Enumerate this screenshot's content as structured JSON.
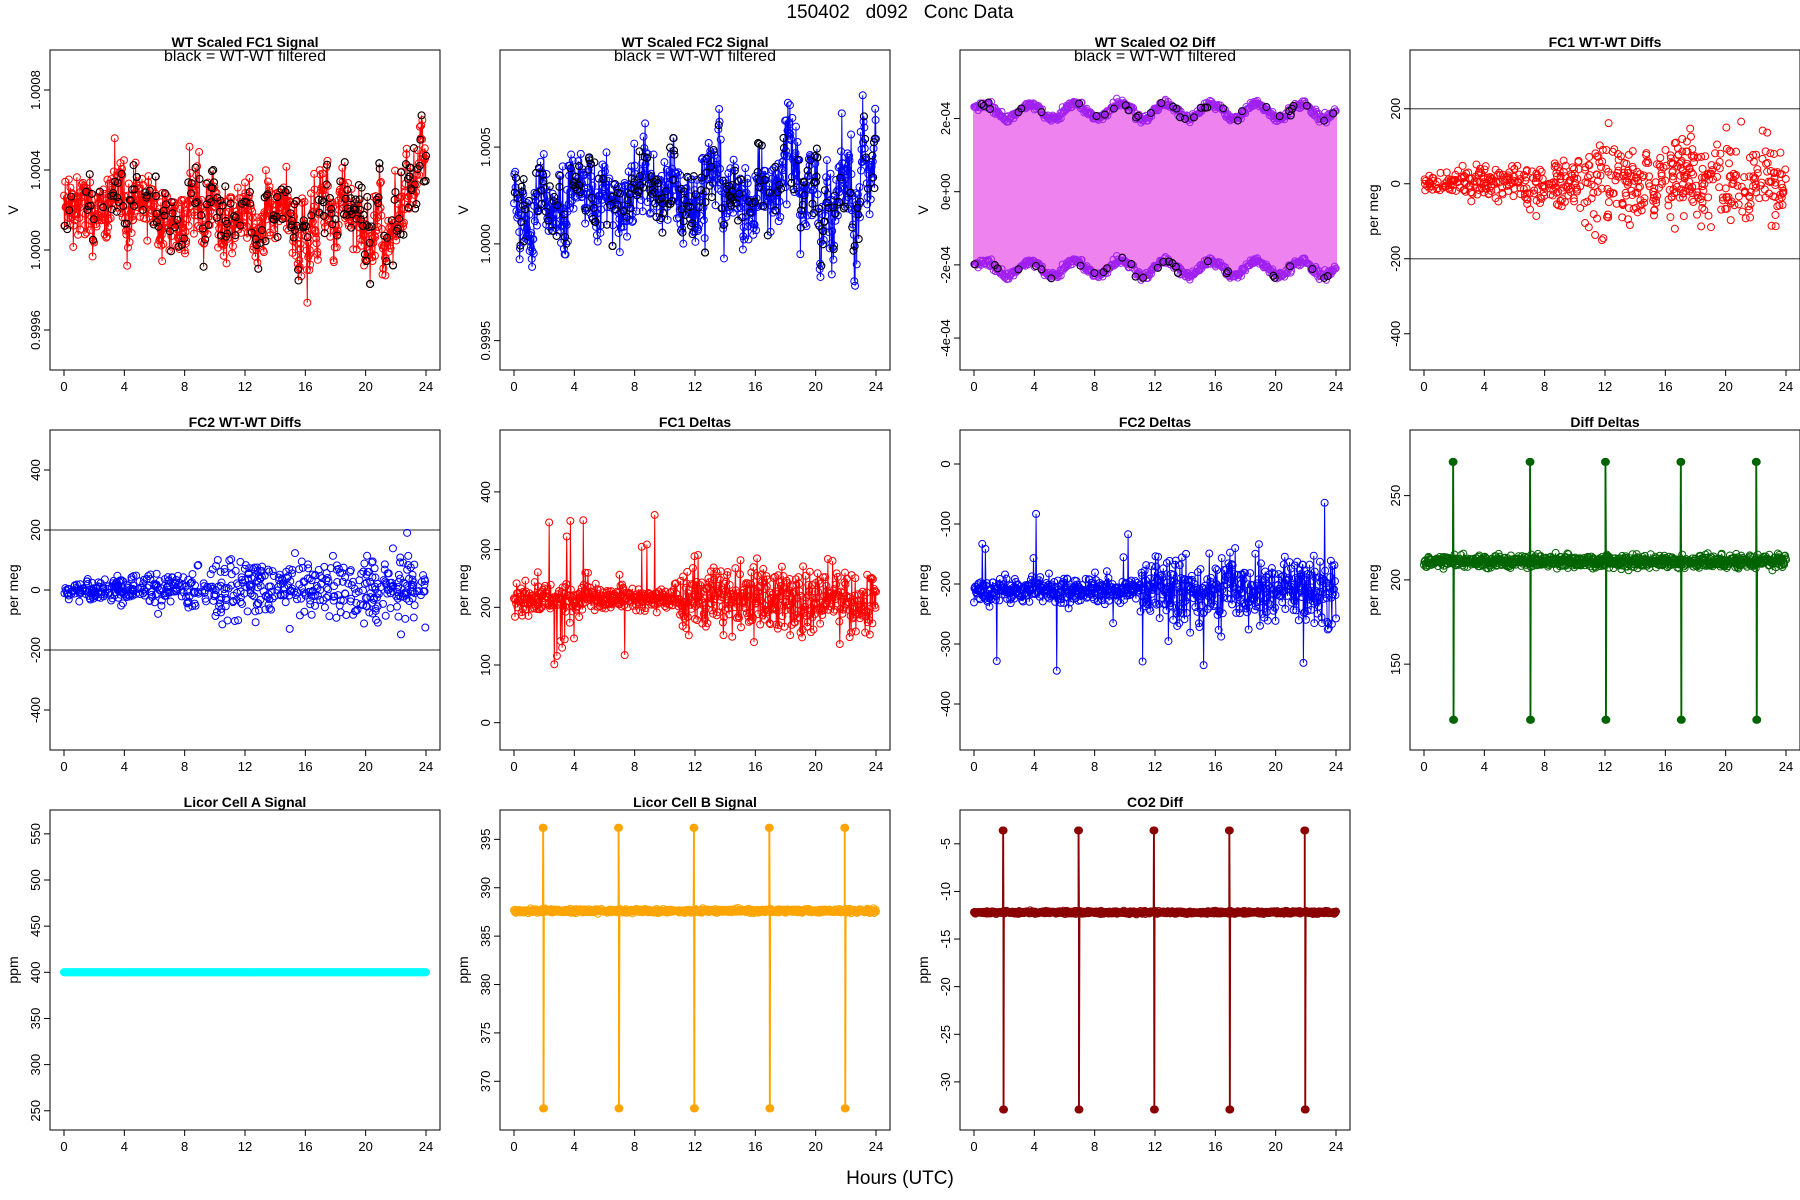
{
  "figure": {
    "title": "150402   d092   Conc Data",
    "xlabel": "Hours (UTC)"
  },
  "chart_data": [
    {
      "type": "line",
      "title": "WT Scaled FC1 Signal",
      "annotation": "black = WT-WT filtered",
      "xlabel": "",
      "ylabel": "V",
      "xlim": [
        0,
        24
      ],
      "ylim": [
        0.99945,
        1.00095
      ],
      "xticks": [
        0,
        4,
        8,
        12,
        16,
        20,
        24
      ],
      "yticks": [
        0.9996,
        1.0,
        1.0004,
        1.0008
      ],
      "ytick_labels": [
        "0.9996",
        "1.0000",
        "1.0004",
        "1.0008"
      ],
      "gen": {
        "kind": "noise",
        "center": 1.0002,
        "amp": 0.00025,
        "seed": 11
      },
      "series": [
        {
          "name": "signal",
          "color": "#ff0000",
          "style": "line+points"
        },
        {
          "name": "WT-WT filtered",
          "color": "#000000",
          "style": "points"
        }
      ]
    },
    {
      "type": "line",
      "title": "WT Scaled FC2 Signal",
      "annotation": "black = WT-WT filtered",
      "xlabel": "",
      "ylabel": "V",
      "xlim": [
        0,
        24
      ],
      "ylim": [
        0.9994,
        1.00095
      ],
      "xticks": [
        0,
        4,
        8,
        12,
        16,
        20,
        24
      ],
      "yticks": [
        0.9995,
        1.0,
        1.0005
      ],
      "ytick_labels": [
        "0.9995",
        "1.0000",
        "1.0005"
      ],
      "gen": {
        "kind": "noise",
        "center": 1.0002,
        "amp": 0.0003,
        "seed": 23
      },
      "series": [
        {
          "name": "signal",
          "color": "#0000ff",
          "style": "line+points"
        },
        {
          "name": "WT-WT filtered",
          "color": "#000000",
          "style": "points"
        }
      ]
    },
    {
      "type": "line",
      "title": "WT Scaled O2 Diff",
      "annotation": "black = WT-WT filtered",
      "xlabel": "",
      "ylabel": "V",
      "xlim": [
        0,
        24
      ],
      "ylim": [
        -0.00046,
        0.00036
      ],
      "xticks": [
        0,
        4,
        8,
        12,
        16,
        20,
        24
      ],
      "yticks": [
        -0.0004,
        -0.0002,
        0,
        0.0002
      ],
      "ytick_labels": [
        "-4e-04",
        "-2e-04",
        "0e+00",
        "2e-04"
      ],
      "gen": {
        "kind": "band",
        "upper": 0.00022,
        "lower": -0.00021,
        "seed": 37
      },
      "series": [
        {
          "name": "signal",
          "color": "#ee82ee",
          "style": "band"
        },
        {
          "name": "points",
          "color": "#a020f0",
          "style": "points"
        },
        {
          "name": "WT-WT filtered",
          "color": "#000000",
          "style": "points"
        }
      ]
    },
    {
      "type": "scatter",
      "title": "FC1 WT-WT Diffs",
      "xlabel": "",
      "ylabel": "per meg",
      "xlim": [
        0,
        24
      ],
      "ylim": [
        -470,
        330
      ],
      "xticks": [
        0,
        4,
        8,
        12,
        16,
        20,
        24
      ],
      "yticks": [
        -400,
        -200,
        0,
        200
      ],
      "ytick_labels": [
        "-400",
        "-200",
        "0",
        "200"
      ],
      "hlines": [
        200,
        -200
      ],
      "gen": {
        "kind": "scatter",
        "seed": 41
      },
      "series": [
        {
          "name": "FC1 WT-WT Diffs",
          "color": "#ff0000",
          "style": "points"
        }
      ]
    },
    {
      "type": "scatter",
      "title": "FC2 WT-WT Diffs",
      "xlabel": "",
      "ylabel": "per meg",
      "xlim": [
        0,
        24
      ],
      "ylim": [
        -500,
        500
      ],
      "xticks": [
        0,
        4,
        8,
        12,
        16,
        20,
        24
      ],
      "yticks": [
        -400,
        -200,
        0,
        200,
        400
      ],
      "ytick_labels": [
        "-400",
        "-200",
        "0",
        "200",
        "400"
      ],
      "hlines": [
        200,
        -200
      ],
      "gen": {
        "kind": "scatter",
        "seed": 53
      },
      "series": [
        {
          "name": "FC2 WT-WT Diffs",
          "color": "#0000ff",
          "style": "points"
        }
      ]
    },
    {
      "type": "line",
      "title": "FC1 Deltas",
      "xlabel": "",
      "ylabel": "per meg",
      "xlim": [
        0,
        24
      ],
      "ylim": [
        -30,
        490
      ],
      "xticks": [
        0,
        4,
        8,
        12,
        16,
        20,
        24
      ],
      "yticks": [
        0,
        100,
        200,
        300,
        400
      ],
      "ytick_labels": [
        "0",
        "100",
        "200",
        "300",
        "400"
      ],
      "gen": {
        "kind": "delta",
        "center": 215,
        "seed": 67
      },
      "series": [
        {
          "name": "FC1 Deltas",
          "color": "#ff0000",
          "style": "line+points"
        }
      ]
    },
    {
      "type": "line",
      "title": "FC2 Deltas",
      "xlabel": "",
      "ylabel": "per meg",
      "xlim": [
        0,
        24
      ],
      "ylim": [
        -460,
        40
      ],
      "xticks": [
        0,
        4,
        8,
        12,
        16,
        20,
        24
      ],
      "yticks": [
        -400,
        -300,
        -200,
        -100,
        0
      ],
      "ytick_labels": [
        "-400",
        "-300",
        "-200",
        "-100",
        "0"
      ],
      "gen": {
        "kind": "delta",
        "center": -210,
        "seed": 71
      },
      "series": [
        {
          "name": "FC2 Deltas",
          "color": "#0000ff",
          "style": "line+points"
        }
      ]
    },
    {
      "type": "line",
      "title": "Diff Deltas",
      "xlabel": "",
      "ylabel": "per meg",
      "xlim": [
        0,
        24
      ],
      "ylim": [
        105,
        283
      ],
      "xticks": [
        0,
        4,
        8,
        12,
        16,
        20,
        24
      ],
      "yticks": [
        150,
        200,
        250
      ],
      "ytick_labels": [
        "150",
        "200",
        "250"
      ],
      "gen": {
        "kind": "spikes",
        "base": 211,
        "noise": 4,
        "hi": 270,
        "lo": 117,
        "times": [
          1.9,
          7.0,
          12.0,
          17.0,
          22.0
        ],
        "seed": 83
      },
      "series": [
        {
          "name": "Diff Deltas",
          "color": "#006400",
          "style": "line+points"
        }
      ]
    },
    {
      "type": "line",
      "title": "Licor Cell A Signal",
      "xlabel": "",
      "ylabel": "ppm",
      "xlim": [
        0,
        24
      ],
      "ylim": [
        240,
        565
      ],
      "xticks": [
        0,
        4,
        8,
        12,
        16,
        20,
        24
      ],
      "yticks": [
        250,
        300,
        350,
        400,
        450,
        500,
        550
      ],
      "ytick_labels": [
        "250",
        "300",
        "350",
        "400",
        "450",
        "500",
        "550"
      ],
      "gen": {
        "kind": "flat",
        "value": 400
      },
      "series": [
        {
          "name": "Licor Cell A Signal",
          "color": "#00ffff",
          "style": "line+points"
        }
      ]
    },
    {
      "type": "line",
      "title": "Licor Cell B Signal",
      "xlabel": "",
      "ylabel": "ppm",
      "xlim": [
        0,
        24
      ],
      "ylim": [
        366,
        397
      ],
      "xticks": [
        0,
        4,
        8,
        12,
        16,
        20,
        24
      ],
      "yticks": [
        370,
        375,
        380,
        385,
        390,
        395
      ],
      "ytick_labels": [
        "370",
        "375",
        "380",
        "385",
        "390",
        "395"
      ],
      "gen": {
        "kind": "spikes",
        "base": 387.6,
        "noise": 0.2,
        "hi": 396.2,
        "lo": 367.2,
        "times": [
          1.9,
          6.9,
          11.9,
          16.9,
          21.9
        ],
        "seed": 97
      },
      "series": [
        {
          "name": "Licor Cell B Signal",
          "color": "#ffa500",
          "style": "line+points"
        }
      ]
    },
    {
      "type": "line",
      "title": "CO2 Diff",
      "xlabel": "",
      "ylabel": "ppm",
      "xlim": [
        0,
        24
      ],
      "ylim": [
        -34,
        -2.5
      ],
      "xticks": [
        0,
        4,
        8,
        12,
        16,
        20,
        24
      ],
      "yticks": [
        -30,
        -25,
        -20,
        -15,
        -10,
        -5
      ],
      "ytick_labels": [
        "-30",
        "-25",
        "-20",
        "-15",
        "-10",
        "-5"
      ],
      "gen": {
        "kind": "spikes",
        "base": -12.2,
        "noise": 0.15,
        "hi": -3.6,
        "lo": -32.9,
        "times": [
          1.9,
          6.9,
          11.9,
          16.9,
          21.9
        ],
        "seed": 101
      },
      "series": [
        {
          "name": "CO2 Diff",
          "color": "#8b0000",
          "style": "line+points"
        }
      ]
    }
  ]
}
